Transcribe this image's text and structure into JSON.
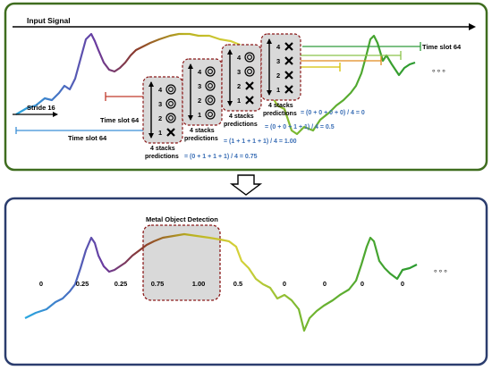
{
  "top_panel": {
    "input_signal_label": "Input Signal",
    "stride_label": "Stride 16",
    "time_slot_labels": [
      "Time slot 64",
      "Time slot 64",
      "Time slot 64"
    ],
    "ellipsis": "∘∘∘",
    "stacks": [
      {
        "stack_label": "4 stacks predictions",
        "marks": [
          {
            "n": "4",
            "type": "circle"
          },
          {
            "n": "3",
            "type": "circle"
          },
          {
            "n": "2",
            "type": "circle"
          },
          {
            "n": "1",
            "type": "cross"
          }
        ]
      },
      {
        "stack_label": "4 stacks predictions",
        "marks": [
          {
            "n": "4",
            "type": "circle"
          },
          {
            "n": "3",
            "type": "circle"
          },
          {
            "n": "2",
            "type": "circle"
          },
          {
            "n": "1",
            "type": "circle"
          }
        ]
      },
      {
        "stack_label": "4 stacks predictions",
        "marks": [
          {
            "n": "4",
            "type": "circle"
          },
          {
            "n": "3",
            "type": "circle"
          },
          {
            "n": "2",
            "type": "cross"
          },
          {
            "n": "1",
            "type": "cross"
          }
        ]
      },
      {
        "stack_label": "4 stacks predictions",
        "marks": [
          {
            "n": "4",
            "type": "cross"
          },
          {
            "n": "3",
            "type": "cross"
          },
          {
            "n": "2",
            "type": "cross"
          },
          {
            "n": "1",
            "type": "cross"
          }
        ]
      }
    ],
    "equations": [
      "= (0 + 0 + 0 + 0) / 4 = 0",
      "= (0 + 0 + 1 + 1) / 4 = 0.5",
      "= (1 + 1 + 1 + 1) / 4 = 1.00",
      "= (0 + 1 + 1 + 1) / 4 = 0.75"
    ]
  },
  "arrow_label": "",
  "bottom_panel": {
    "detection_label": "Metal Object Detection",
    "values": [
      "0",
      "0.25",
      "0.25",
      "0.75",
      "1.00",
      "0.5",
      "0",
      "0",
      "0",
      "0"
    ],
    "ellipsis": "∘∘∘"
  },
  "colors": {
    "top_border": "#3f6d1f",
    "bottom_border": "#2b3d6e",
    "stack_box_fill": "#d9d9d9",
    "stack_box_border": "#8b1a1a",
    "equation_text": "#3b6fb6",
    "signal_gradient": [
      "#29a8e0",
      "#5a3fa0",
      "#8b3a2a",
      "#b8b020",
      "#d6d23a",
      "#2a9a30"
    ]
  }
}
